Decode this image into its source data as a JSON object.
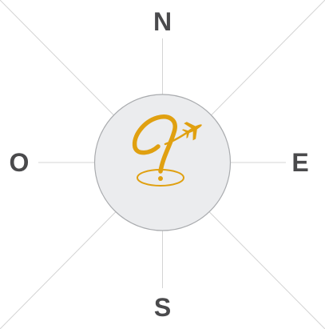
{
  "compass": {
    "north": "N",
    "south": "S",
    "east": "E",
    "west": "O"
  },
  "colors": {
    "background": "#ffffff",
    "guide_lines": "#d4d4d4",
    "disc_fill": "#ebecee",
    "disc_stroke": "#a9abae",
    "logo": "#e0a010",
    "letters": "#4a4a4c"
  },
  "logo": {
    "icon": "question-mark-airplane-pin-icon"
  }
}
